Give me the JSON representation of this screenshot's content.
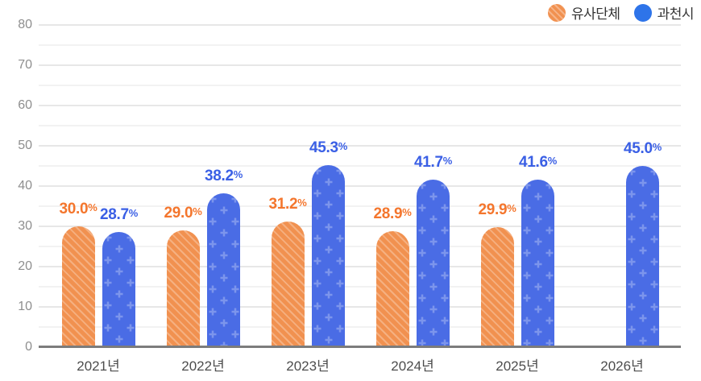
{
  "legend": {
    "position": "top-right"
  },
  "chart_data": {
    "type": "bar",
    "title": "",
    "xlabel": "",
    "ylabel": "",
    "categories": [
      "2021년",
      "2022년",
      "2023년",
      "2024년",
      "2025년",
      "2026년"
    ],
    "series": [
      {
        "name": "유사단체",
        "color": "#F19150",
        "pattern": "diagonal-stripes",
        "label_color": "#F4762D",
        "values": [
          30.0,
          29.0,
          31.2,
          28.9,
          29.9,
          null
        ]
      },
      {
        "name": "과천시",
        "color": "#4A6CE5",
        "pattern": "plus-dots",
        "label_color": "#3A5FE5",
        "values": [
          28.7,
          38.2,
          45.3,
          41.7,
          41.6,
          45.0
        ]
      }
    ],
    "value_suffix": "%",
    "value_decimals": 1,
    "ylim": [
      0,
      80
    ],
    "y_ticks": [
      0,
      10,
      20,
      30,
      40,
      50,
      60,
      70,
      80
    ],
    "grid": true,
    "grid_minor_step": 5,
    "legend_position": "top-right"
  }
}
